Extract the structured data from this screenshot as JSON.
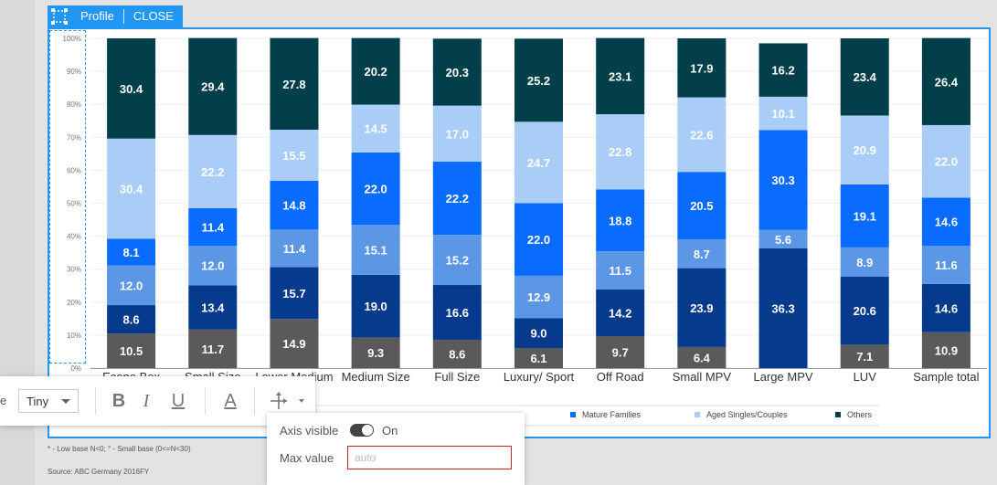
{
  "toolbar": {
    "profile_label": "Profile",
    "close_label": "CLOSE"
  },
  "format_toolbar": {
    "size_label_fragment": "e",
    "size_value": "Tiny",
    "bold": "B",
    "italic": "I",
    "underline": "U",
    "font_color": "A"
  },
  "axis_popup": {
    "axis_visible_label": "Axis visible",
    "axis_visible_state": "On",
    "max_value_label": "Max value",
    "max_value_placeholder": "auto"
  },
  "legend": [
    {
      "label": "Mature Families",
      "color": "#0a6cff"
    },
    {
      "label": "Aged Singles/Couples",
      "color": "#a9cdf7"
    },
    {
      "label": "Others",
      "color": "#033f4b"
    }
  ],
  "footnote": "* - Low base N<0;  ° - Small base (0<=N<30)",
  "source": "Source: ABC Germany 2016FY",
  "chart_data": {
    "type": "bar",
    "stacked": true,
    "title": "",
    "xlabel": "",
    "ylabel": "",
    "ylim": [
      0,
      100
    ],
    "yticks": [
      "0%",
      "10%",
      "20%",
      "30%",
      "40%",
      "50%",
      "60%",
      "70%",
      "80%",
      "90%",
      "100%"
    ],
    "categories": [
      "Econo Box",
      "Small Size",
      "Lower Medium",
      "Medium Size",
      "Full Size",
      "Luxury/ Sport",
      "Off Road",
      "Small MPV",
      "Large MPV",
      "LUV",
      "Sample total"
    ],
    "series": [
      {
        "color": "#5a5a5a",
        "label_color": "#ffffff",
        "values": [
          10.5,
          11.7,
          14.9,
          9.3,
          8.6,
          6.1,
          9.7,
          6.4,
          0,
          7.1,
          10.9
        ]
      },
      {
        "color": "#063a8c",
        "label_color": "#ffffff",
        "values": [
          8.6,
          13.4,
          15.7,
          19.0,
          16.6,
          9.0,
          14.2,
          23.9,
          36.3,
          20.6,
          14.6
        ]
      },
      {
        "color": "#5c97e6",
        "label_color": "#ffffff",
        "values": [
          12.0,
          12.0,
          11.4,
          15.1,
          15.2,
          12.9,
          11.5,
          8.7,
          5.6,
          8.9,
          11.6
        ]
      },
      {
        "color": "#0a6cff",
        "label_color": "#ffffff",
        "values": [
          8.1,
          11.4,
          14.8,
          22.0,
          22.2,
          22.0,
          18.8,
          20.5,
          30.3,
          19.1,
          14.6
        ]
      },
      {
        "color": "#a9cdf7",
        "label_color": "#ffffff",
        "values": [
          30.4,
          22.2,
          15.5,
          14.5,
          17.0,
          24.7,
          22.8,
          22.6,
          10.1,
          20.9,
          22.0
        ]
      },
      {
        "color": "#033f4b",
        "label_color": "#ffffff",
        "values": [
          30.4,
          29.4,
          27.8,
          20.2,
          20.3,
          25.2,
          23.1,
          17.9,
          16.2,
          23.4,
          26.4
        ]
      }
    ],
    "grid": true,
    "legend_position": "bottom"
  }
}
